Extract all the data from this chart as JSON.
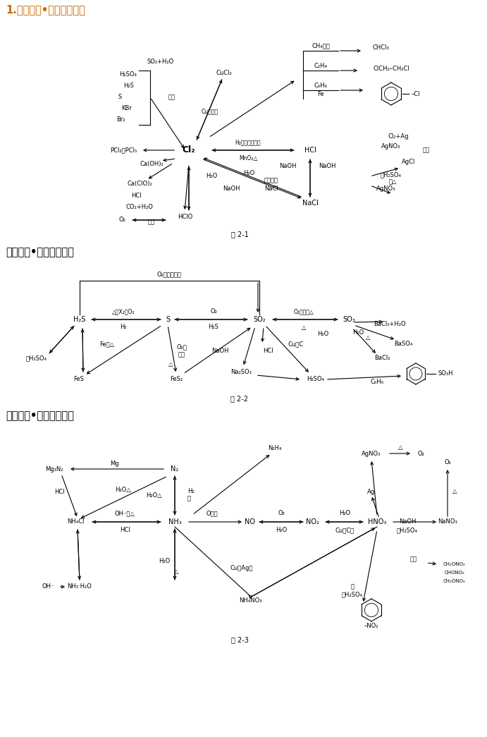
{
  "title1": "1.知识结构•氯及其化合物",
  "title2": "知识结构•硫及其化合物",
  "title3": "知识结构•氮及其化合物",
  "fig1_label": "图 2-1",
  "fig2_label": "图 2-2",
  "fig3_label": "图 2-3",
  "bg_color": "#ffffff",
  "text_color": "#000000",
  "title1_color": "#cc6600",
  "arrow_color": "#000000"
}
